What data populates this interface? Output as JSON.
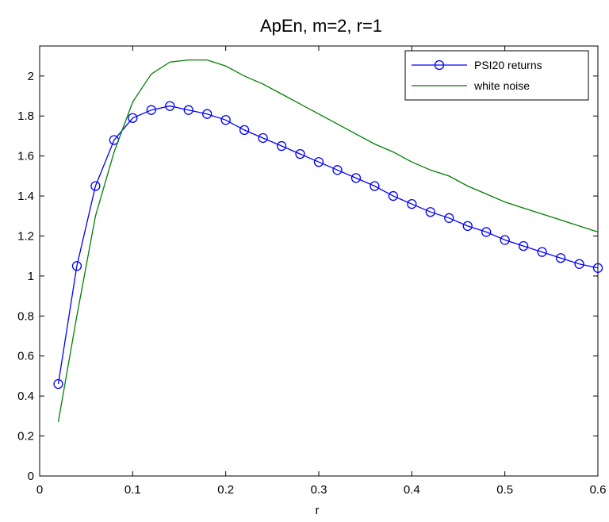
{
  "chart_data": {
    "type": "line",
    "title": "ApEn, m=2, r=1",
    "xlabel": "r",
    "ylabel": "",
    "xlim": [
      0,
      0.6
    ],
    "ylim": [
      0,
      2.15
    ],
    "xticks": [
      0,
      0.1,
      0.2,
      0.3,
      0.4,
      0.5,
      0.6
    ],
    "xtick_labels": [
      "0",
      "0.1",
      "0.2",
      "0.3",
      "0.4",
      "0.5",
      "0.6"
    ],
    "yticks": [
      0,
      0.2,
      0.4,
      0.6,
      0.8,
      1,
      1.2,
      1.4,
      1.6,
      1.8,
      2
    ],
    "ytick_labels": [
      "0",
      "0.2",
      "0.4",
      "0.6",
      "0.8",
      "1",
      "1.2",
      "1.4",
      "1.6",
      "1.8",
      "2"
    ],
    "grid": false,
    "legend_position": "top-right",
    "series": [
      {
        "name": "PSI20 returns",
        "color": "#0000ff",
        "marker": "circle",
        "x": [
          0.02,
          0.04,
          0.06,
          0.08,
          0.1,
          0.12,
          0.14,
          0.16,
          0.18,
          0.2,
          0.22,
          0.24,
          0.26,
          0.28,
          0.3,
          0.32,
          0.34,
          0.36,
          0.38,
          0.4,
          0.42,
          0.44,
          0.46,
          0.48,
          0.5,
          0.52,
          0.54,
          0.56,
          0.58,
          0.6
        ],
        "y": [
          0.46,
          1.05,
          1.45,
          1.68,
          1.79,
          1.83,
          1.85,
          1.83,
          1.81,
          1.78,
          1.73,
          1.69,
          1.65,
          1.61,
          1.57,
          1.53,
          1.49,
          1.45,
          1.4,
          1.36,
          1.32,
          1.29,
          1.25,
          1.22,
          1.18,
          1.15,
          1.12,
          1.09,
          1.06,
          1.04
        ]
      },
      {
        "name": "white noise",
        "color": "#007f00",
        "marker": "none",
        "x": [
          0.02,
          0.04,
          0.06,
          0.08,
          0.1,
          0.12,
          0.14,
          0.16,
          0.18,
          0.2,
          0.22,
          0.24,
          0.26,
          0.28,
          0.3,
          0.32,
          0.34,
          0.36,
          0.38,
          0.4,
          0.42,
          0.44,
          0.46,
          0.48,
          0.5,
          0.52,
          0.54,
          0.56,
          0.58,
          0.6
        ],
        "y": [
          0.27,
          0.8,
          1.3,
          1.62,
          1.87,
          2.01,
          2.07,
          2.08,
          2.08,
          2.05,
          2.0,
          1.96,
          1.91,
          1.86,
          1.81,
          1.76,
          1.71,
          1.66,
          1.62,
          1.57,
          1.53,
          1.5,
          1.45,
          1.41,
          1.37,
          1.34,
          1.31,
          1.28,
          1.25,
          1.22
        ]
      }
    ]
  }
}
